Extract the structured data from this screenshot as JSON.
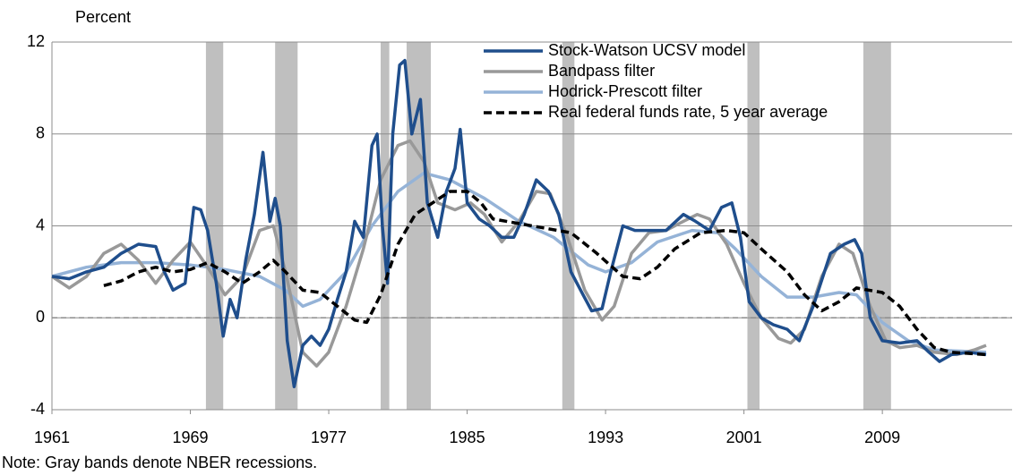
{
  "chart_data": {
    "type": "line",
    "ylabel": "Percent",
    "note": "Note: Gray bands denote NBER recessions.",
    "xlim": [
      1961,
      2016.5
    ],
    "xticks": [
      1961,
      1969,
      1977,
      1985,
      1993,
      2001,
      2009
    ],
    "ylim": [
      -4,
      12
    ],
    "yticks": [
      12,
      8,
      4,
      0,
      -4
    ],
    "grid": true,
    "zero_line": true,
    "legend": "upper right",
    "recessions": [
      [
        1969.9,
        1970.9
      ],
      [
        1973.9,
        1975.2
      ],
      [
        1980.0,
        1980.5
      ],
      [
        1981.5,
        1982.9
      ],
      [
        1990.5,
        1991.2
      ],
      [
        2001.2,
        2001.9
      ],
      [
        2007.9,
        2009.5
      ]
    ],
    "recession_color": "#bfbfbf",
    "series": [
      {
        "name": "Stock-Watson UCSV model",
        "color": "#1f4e8c",
        "dash": false,
        "x": [
          1961,
          1962,
          1963,
          1964,
          1965,
          1966,
          1967,
          1967.5,
          1968,
          1968.7,
          1969.2,
          1969.6,
          1970,
          1970.5,
          1970.9,
          1971.3,
          1971.7,
          1972.2,
          1972.7,
          1973.2,
          1973.6,
          1973.9,
          1974.2,
          1974.6,
          1975,
          1975.5,
          1976,
          1976.5,
          1977,
          1977.5,
          1978,
          1978.5,
          1979,
          1979.5,
          1979.8,
          1980.1,
          1980.4,
          1980.7,
          1981.1,
          1981.4,
          1981.8,
          1982.3,
          1982.7,
          1983.3,
          1983.8,
          1984.3,
          1984.6,
          1985,
          1985.7,
          1986.3,
          1987,
          1987.7,
          1988.3,
          1989,
          1989.7,
          1990.3,
          1991,
          1991.7,
          1992.2,
          1992.8,
          1993.3,
          1994,
          1994.7,
          1995.5,
          1996.5,
          1997.5,
          1998.2,
          1999,
          1999.7,
          2000.3,
          2000.8,
          2001.3,
          2002,
          2002.7,
          2003.5,
          2004.2,
          2005,
          2006,
          2006.8,
          2007.4,
          2007.8,
          2008.3,
          2009,
          2010,
          2011,
          2011.7,
          2012.3,
          2013,
          2014,
          2015
        ],
        "values": [
          1.8,
          1.7,
          2.0,
          2.2,
          2.8,
          3.2,
          3.1,
          2.0,
          1.2,
          1.5,
          4.8,
          4.7,
          3.8,
          1.5,
          -0.8,
          0.8,
          0.0,
          2.5,
          4.5,
          7.2,
          4.2,
          5.2,
          4.0,
          -1.0,
          -3.0,
          -1.2,
          -0.8,
          -1.2,
          -0.5,
          0.8,
          2.0,
          4.2,
          3.5,
          7.5,
          8.0,
          4.0,
          1.5,
          8.0,
          11.0,
          11.2,
          8.0,
          9.5,
          5.0,
          3.5,
          5.5,
          6.5,
          8.2,
          5.0,
          4.3,
          4.0,
          3.5,
          3.5,
          4.5,
          6.0,
          5.5,
          4.5,
          2.0,
          1.0,
          0.3,
          0.4,
          2.0,
          4.0,
          3.8,
          3.8,
          3.8,
          4.5,
          4.2,
          3.8,
          4.8,
          5.0,
          3.5,
          0.7,
          0.0,
          -0.3,
          -0.5,
          -1.0,
          0.5,
          2.8,
          3.2,
          3.4,
          2.8,
          0.0,
          -1.0,
          -1.1,
          -1.0,
          -1.5,
          -1.9,
          -1.6,
          -1.5,
          -1.6
        ]
      },
      {
        "name": "Bandpass filter",
        "color": "#999999",
        "dash": false,
        "x": [
          1961,
          1962,
          1963,
          1964,
          1965,
          1966,
          1967,
          1968,
          1969,
          1970,
          1971,
          1972,
          1973,
          1973.8,
          1974.5,
          1975.5,
          1976.3,
          1977,
          1978,
          1979,
          1980,
          1981,
          1981.7,
          1982.5,
          1983.3,
          1984.3,
          1985.2,
          1986,
          1987,
          1988,
          1989,
          1989.8,
          1990.8,
          1991.8,
          1992.8,
          1993.5,
          1994.5,
          1995.5,
          1996.5,
          1997.5,
          1998.3,
          1999,
          2000,
          2001,
          2002,
          2003,
          2003.7,
          2004.5,
          2005.5,
          2006.5,
          2007.3,
          2008.3,
          2009.2,
          2010,
          2011,
          2012,
          2013.3,
          2014.3,
          2015
        ],
        "values": [
          1.8,
          1.3,
          1.8,
          2.8,
          3.2,
          2.5,
          1.5,
          2.5,
          3.3,
          2.2,
          1.0,
          1.8,
          3.8,
          4.0,
          2.0,
          -1.5,
          -2.1,
          -1.5,
          0.5,
          3.0,
          6.0,
          7.5,
          7.7,
          6.8,
          5.0,
          4.7,
          5.0,
          4.5,
          3.3,
          4.2,
          5.5,
          5.4,
          3.5,
          1.2,
          -0.1,
          0.5,
          2.8,
          3.7,
          3.8,
          4.2,
          4.5,
          4.3,
          3.2,
          1.5,
          0.0,
          -0.9,
          -1.1,
          -0.5,
          1.8,
          3.2,
          2.8,
          0.5,
          -1.0,
          -1.3,
          -1.2,
          -1.5,
          -1.6,
          -1.4,
          -1.2
        ]
      },
      {
        "name": "Hodrick-Prescott filter",
        "color": "#95b3d7",
        "dash": false,
        "x": [
          1961,
          1963,
          1965,
          1967,
          1969,
          1971,
          1973,
          1974.5,
          1975.5,
          1976.5,
          1978,
          1979.5,
          1981,
          1982.5,
          1984,
          1986,
          1988,
          1990,
          1992,
          1993,
          1994.5,
          1996,
          1998,
          1999.5,
          2000.5,
          2002,
          2003.5,
          2005,
          2006.5,
          2007.5,
          2009,
          2010.5,
          2012,
          2015
        ],
        "values": [
          1.8,
          2.2,
          2.4,
          2.4,
          2.3,
          2.1,
          1.8,
          1.2,
          0.5,
          0.8,
          2.0,
          4.0,
          5.5,
          6.3,
          6.0,
          5.2,
          4.2,
          3.5,
          2.3,
          2.0,
          2.4,
          3.3,
          3.8,
          3.7,
          3.0,
          1.8,
          0.9,
          0.9,
          1.1,
          1.0,
          -0.2,
          -1.0,
          -1.4,
          -1.5
        ]
      },
      {
        "name": "Real federal funds rate, 5 year average",
        "color": "#000000",
        "dash": true,
        "x": [
          1964,
          1965,
          1966,
          1967,
          1968,
          1969,
          1970,
          1971,
          1972,
          1973,
          1973.8,
          1974.5,
          1975.5,
          1976.5,
          1977.5,
          1978.5,
          1979.2,
          1980,
          1981,
          1982,
          1983,
          1984,
          1985,
          1985.8,
          1986.5,
          1988,
          1989.5,
          1991,
          1992.5,
          1994,
          1995,
          1996,
          1997,
          1998.5,
          2000,
          2001,
          2002,
          2003.5,
          2004.5,
          2005.5,
          2006.5,
          2007.5,
          2009,
          2010,
          2011,
          2012,
          2013,
          2015
        ],
        "values": [
          1.4,
          1.6,
          2.0,
          2.2,
          2.0,
          2.1,
          2.4,
          2.0,
          1.5,
          2.0,
          2.5,
          2.0,
          1.2,
          1.1,
          0.5,
          -0.1,
          -0.2,
          1.0,
          3.2,
          4.5,
          5.0,
          5.5,
          5.5,
          5.0,
          4.3,
          4.1,
          3.9,
          3.7,
          2.8,
          1.8,
          1.7,
          2.2,
          3.0,
          3.7,
          3.8,
          3.7,
          3.0,
          2.0,
          1.0,
          0.3,
          0.7,
          1.3,
          1.1,
          0.5,
          -0.5,
          -1.3,
          -1.5,
          -1.6
        ]
      }
    ]
  }
}
